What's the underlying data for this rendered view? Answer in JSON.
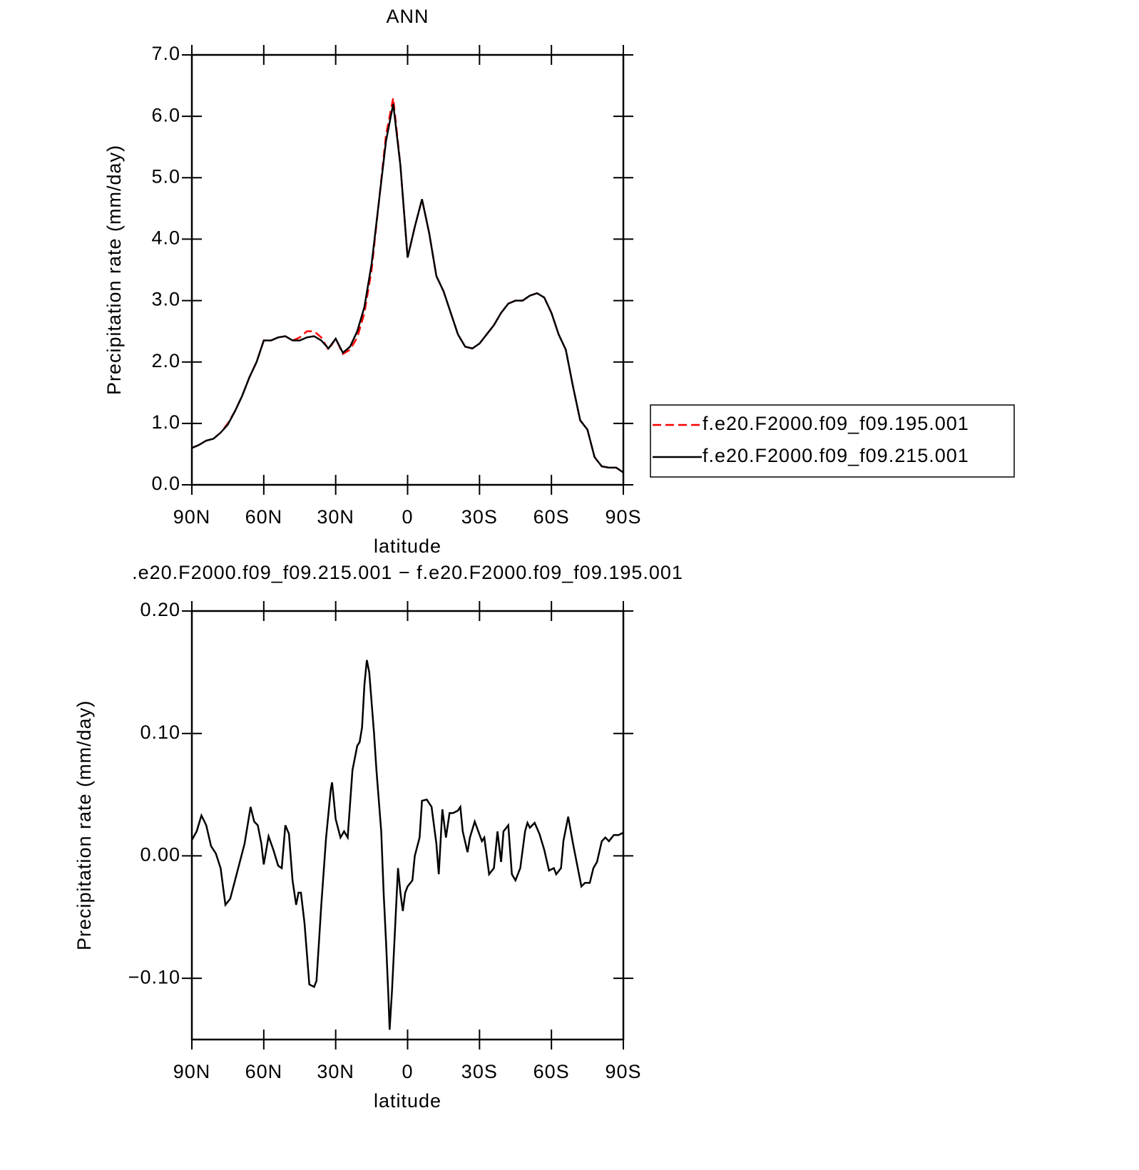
{
  "chart_data": [
    {
      "type": "line",
      "title": "ANN",
      "x_label": "latitude",
      "y_label": "Precipitation rate (mm/day)",
      "x": [
        90,
        87,
        84,
        81,
        78,
        75,
        72,
        69,
        66,
        63,
        60,
        57,
        54,
        51,
        48,
        45,
        42,
        39,
        36,
        33,
        30,
        27,
        24,
        21,
        18,
        15,
        12,
        9,
        6,
        3,
        0,
        -3,
        -6,
        -9,
        -12,
        -15,
        -18,
        -21,
        -24,
        -27,
        -30,
        -33,
        -36,
        -39,
        -42,
        -45,
        -48,
        -51,
        -54,
        -57,
        -60,
        -63,
        -66,
        -69,
        -72,
        -75,
        -78,
        -81,
        -84,
        -87,
        -90
      ],
      "series": [
        {
          "name": "f.e20.F2000.f09_f09.195.001",
          "color": "#ff0000",
          "line_style": "dashed",
          "values": [
            0.6,
            0.65,
            0.72,
            0.75,
            0.85,
            1.0,
            1.2,
            1.45,
            1.75,
            2.0,
            2.35,
            2.35,
            2.4,
            2.42,
            2.35,
            2.4,
            2.5,
            2.5,
            2.4,
            2.2,
            2.38,
            2.13,
            2.2,
            2.4,
            2.8,
            3.5,
            4.6,
            5.7,
            6.3,
            5.2,
            3.7,
            4.2,
            4.65,
            4.1,
            3.4,
            3.15,
            2.8,
            2.45,
            2.25,
            2.22,
            2.3,
            2.45,
            2.6,
            2.8,
            2.95,
            3.0,
            3.0,
            3.08,
            3.12,
            3.05,
            2.8,
            2.45,
            2.2,
            1.6,
            1.05,
            0.9,
            0.45,
            0.3,
            0.28,
            0.28,
            0.2
          ]
        },
        {
          "name": "f.e20.F2000.f09_f09.215.001",
          "color": "#000000",
          "line_style": "solid",
          "values": [
            0.6,
            0.65,
            0.72,
            0.75,
            0.85,
            0.98,
            1.2,
            1.45,
            1.75,
            2.0,
            2.35,
            2.35,
            2.4,
            2.42,
            2.35,
            2.35,
            2.4,
            2.42,
            2.35,
            2.22,
            2.38,
            2.15,
            2.25,
            2.5,
            2.9,
            3.6,
            4.6,
            5.6,
            6.2,
            5.2,
            3.7,
            4.2,
            4.65,
            4.1,
            3.4,
            3.15,
            2.8,
            2.45,
            2.25,
            2.22,
            2.3,
            2.45,
            2.6,
            2.8,
            2.95,
            3.0,
            3.0,
            3.08,
            3.12,
            3.05,
            2.8,
            2.45,
            2.2,
            1.6,
            1.05,
            0.9,
            0.45,
            0.3,
            0.28,
            0.28,
            0.2
          ]
        }
      ],
      "xlim": [
        90,
        -90
      ],
      "xticks": [
        {
          "value": 90,
          "label": "90N"
        },
        {
          "value": 60,
          "label": "60N"
        },
        {
          "value": 30,
          "label": "30N"
        },
        0,
        {
          "value": -30,
          "label": "30S"
        },
        {
          "value": -60,
          "label": "60S"
        },
        {
          "value": -90,
          "label": "90S"
        }
      ],
      "ylim": [
        0,
        7
      ],
      "yticks": [
        {
          "value": 0,
          "label": "0.0"
        },
        {
          "value": 1,
          "label": "1.0"
        },
        {
          "value": 2,
          "label": "2.0"
        },
        {
          "value": 3,
          "label": "3.0"
        },
        {
          "value": 4,
          "label": "4.0"
        },
        {
          "value": 5,
          "label": "5.0"
        },
        {
          "value": 6,
          "label": "6.0"
        },
        {
          "value": 7,
          "label": "7.0"
        }
      ],
      "legend": "right"
    },
    {
      "type": "line",
      "title": ".e20.F2000.f09_f09.215.001 − f.e20.F2000.f09_f09.195.001",
      "x_label": "latitude",
      "y_label": "Precipitation rate (mm/day)",
      "x": [
        90,
        88,
        86,
        84,
        82,
        80,
        78,
        76,
        74,
        72,
        70,
        68,
        65.5,
        64,
        62.5,
        61,
        60,
        58,
        56,
        54,
        52.5,
        51,
        49.5,
        48,
        46.5,
        45.5,
        44.5,
        43,
        41,
        39,
        38,
        36,
        34,
        32,
        31.5,
        30,
        28,
        26.5,
        25,
        23,
        21,
        20,
        19,
        18,
        17,
        16,
        14,
        13,
        11,
        10,
        9,
        8,
        7.5,
        6.5,
        5,
        4,
        3,
        2,
        1,
        0,
        -2,
        -3,
        -5,
        -6,
        -8,
        -10,
        -12,
        -13,
        -14.5,
        -16,
        -17.5,
        -19,
        -21,
        -22,
        -23,
        -25,
        -26,
        -28,
        -29.5,
        -31,
        -32,
        -34,
        -36,
        -37.5,
        -39,
        -40,
        -42,
        -43.5,
        -45,
        -47,
        -49,
        -50,
        -51,
        -53,
        -55,
        -57,
        -59,
        -61,
        -62,
        -64,
        -65,
        -67,
        -69,
        -71,
        -72.5,
        -74,
        -76,
        -77.5,
        -79,
        -81,
        -82.5,
        -84,
        -86,
        -88,
        -90
      ],
      "values": [
        0.013,
        0.02,
        0.033,
        0.025,
        0.008,
        0.002,
        -0.01,
        -0.04,
        -0.035,
        -0.02,
        -0.005,
        0.01,
        0.04,
        0.028,
        0.025,
        0.01,
        -0.007,
        0.016,
        0.005,
        -0.008,
        -0.01,
        0.025,
        0.018,
        -0.02,
        -0.04,
        -0.03,
        -0.03,
        -0.055,
        -0.105,
        -0.107,
        -0.102,
        -0.04,
        0.015,
        0.055,
        0.06,
        0.03,
        0.015,
        0.02,
        0.015,
        0.07,
        0.09,
        0.093,
        0.105,
        0.14,
        0.16,
        0.15,
        0.1,
        0.07,
        0.02,
        -0.03,
        -0.07,
        -0.115,
        -0.142,
        -0.11,
        -0.05,
        -0.01,
        -0.03,
        -0.045,
        -0.03,
        -0.025,
        -0.02,
        0,
        0.015,
        0.045,
        0.046,
        0.04,
        0.01,
        -0.015,
        0.038,
        0.015,
        0.035,
        0.035,
        0.037,
        0.04,
        0.02,
        0.003,
        0.015,
        0.028,
        0.02,
        0.012,
        0.015,
        -0.015,
        -0.01,
        0.02,
        -0.005,
        0.02,
        0.025,
        -0.015,
        -0.02,
        -0.01,
        0.02,
        0.027,
        0.023,
        0.027,
        0.018,
        0.005,
        -0.012,
        -0.01,
        -0.015,
        -0.01,
        0.012,
        0.032,
        0.01,
        -0.01,
        -0.025,
        -0.022,
        -0.022,
        -0.01,
        -0.005,
        0.012,
        0.015,
        0.012,
        0.017,
        0.017,
        0.019
      ],
      "color": "#000000",
      "xlim": [
        90,
        -90
      ],
      "xticks": [
        {
          "value": 90,
          "label": "90N"
        },
        {
          "value": 60,
          "label": "60N"
        },
        {
          "value": 30,
          "label": "30N"
        },
        0,
        {
          "value": -30,
          "label": "30S"
        },
        {
          "value": -60,
          "label": "60S"
        },
        {
          "value": -90,
          "label": "90S"
        }
      ],
      "ylim": [
        -0.15,
        0.2
      ],
      "yticks": [
        {
          "value": -0.1,
          "label": "−0.10"
        },
        {
          "value": 0,
          "label": "0.00"
        },
        {
          "value": 0.1,
          "label": "0.10"
        },
        {
          "value": 0.2,
          "label": "0.20"
        }
      ]
    }
  ]
}
